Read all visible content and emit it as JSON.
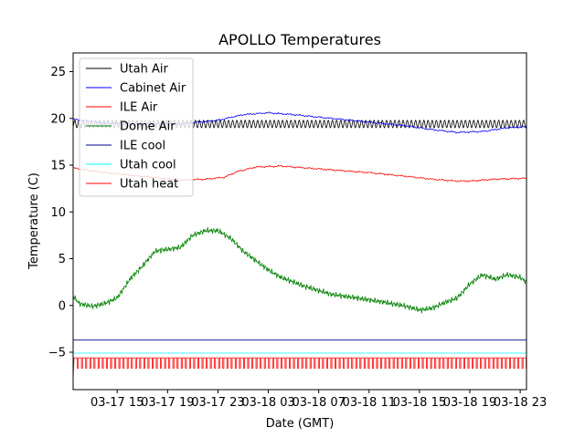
{
  "chart_data": {
    "type": "line",
    "title": "APOLLO Temperatures",
    "xlabel": "Date (GMT)",
    "ylabel": "Temperature (C)",
    "xlim": [
      11.5,
      47.5
    ],
    "ylim": [
      -9,
      27
    ],
    "x_unit": "hours since 03-17 00 GMT",
    "yticks": [
      -5,
      0,
      5,
      10,
      15,
      20,
      25
    ],
    "xticks": [
      {
        "x": 15,
        "label": "03-17 15"
      },
      {
        "x": 19,
        "label": "03-17 19"
      },
      {
        "x": 23,
        "label": "03-17 23"
      },
      {
        "x": 27,
        "label": "03-18 03"
      },
      {
        "x": 31,
        "label": "03-18 07"
      },
      {
        "x": 35,
        "label": "03-18 11"
      },
      {
        "x": 39,
        "label": "03-18 15"
      },
      {
        "x": 43,
        "label": "03-18 19"
      },
      {
        "x": 47,
        "label": "03-18 23"
      }
    ],
    "legend_position": "top-left",
    "grid": false,
    "series": [
      {
        "name": "Utah Air",
        "color": "#000000",
        "style": "oscillating",
        "x": [
          11.5,
          47.5
        ],
        "y": [
          19.4,
          19.4
        ],
        "osc_amplitude": 0.4,
        "osc_period_hours": 0.33
      },
      {
        "name": "Cabinet Air",
        "color": "#0000ff",
        "style": "line",
        "x": [
          11.5,
          14,
          17,
          20,
          23,
          25,
          27,
          29,
          32,
          35,
          38,
          40,
          42,
          44,
          46,
          47.5
        ],
        "y": [
          19.9,
          19.5,
          19.4,
          19.4,
          19.8,
          20.4,
          20.6,
          20.4,
          20.0,
          19.6,
          19.2,
          18.8,
          18.5,
          18.6,
          19.0,
          19.1
        ]
      },
      {
        "name": "ILE Air",
        "color": "#ff0000",
        "style": "line",
        "x": [
          11.5,
          14,
          17,
          20,
          22,
          23.5,
          24.5,
          26,
          28,
          31,
          35,
          38,
          40,
          42,
          43,
          45,
          47.5
        ],
        "y": [
          14.7,
          14.2,
          13.8,
          13.4,
          13.5,
          13.7,
          14.3,
          14.8,
          14.9,
          14.6,
          14.2,
          13.8,
          13.5,
          13.3,
          13.3,
          13.5,
          13.6
        ]
      },
      {
        "name": "Dome Air",
        "color": "#008000",
        "style": "noisy",
        "x": [
          11.5,
          12,
          13,
          14,
          15,
          16,
          17,
          18,
          19,
          20,
          21,
          22,
          23,
          24,
          25,
          26,
          27,
          28,
          30,
          32,
          34,
          36,
          38,
          39,
          40,
          41,
          42,
          43,
          44,
          45,
          46,
          47,
          47.5
        ],
        "y": [
          1.0,
          0.2,
          -0.1,
          0.2,
          0.8,
          2.8,
          4.2,
          5.8,
          6.0,
          6.2,
          7.5,
          8.0,
          8.0,
          7.2,
          5.8,
          4.8,
          3.8,
          3.0,
          2.0,
          1.2,
          0.8,
          0.4,
          -0.1,
          -0.5,
          -0.3,
          0.3,
          0.8,
          2.3,
          3.3,
          2.8,
          3.3,
          3.0,
          2.5
        ]
      },
      {
        "name": "ILE cool",
        "color": "#00008b",
        "style": "line",
        "x": [
          11.5,
          47.5
        ],
        "y": [
          -3.7,
          -3.7
        ]
      },
      {
        "name": "Utah cool",
        "color": "#00ffff",
        "style": "line",
        "x": [
          11.5,
          47.5
        ],
        "y": [
          -5.1,
          -5.1
        ]
      },
      {
        "name": "Utah heat",
        "color": "#ff0000",
        "style": "pulses",
        "x": [
          11.5,
          47.5
        ],
        "y_low": -6.7,
        "y_high": -5.6,
        "first_spike_low": -7.7,
        "pulse_period_hours": 0.33
      }
    ]
  }
}
